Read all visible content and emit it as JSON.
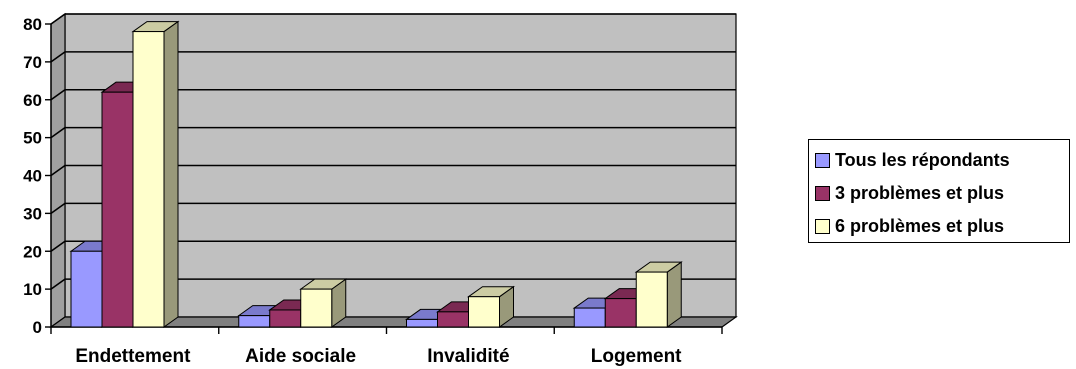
{
  "chart_data": {
    "type": "bar",
    "categories": [
      "Endettement",
      "Aide sociale",
      "Invalidité",
      "Logement"
    ],
    "series": [
      {
        "name": "Tous les répondants",
        "values": [
          20,
          3,
          2,
          5
        ],
        "color": "#9999ff"
      },
      {
        "name": "3 problèmes et plus",
        "values": [
          62,
          4.5,
          4,
          7.5
        ],
        "color": "#993366"
      },
      {
        "name": "6 problèmes et plus",
        "values": [
          78,
          10,
          8,
          14.5
        ],
        "color": "#ffffcc"
      }
    ],
    "yticks": [
      0,
      10,
      20,
      30,
      40,
      50,
      60,
      70,
      80
    ],
    "ylim": [
      0,
      80
    ],
    "grid": true,
    "legend_position": "right",
    "wall_color": "#c0c0c0"
  }
}
